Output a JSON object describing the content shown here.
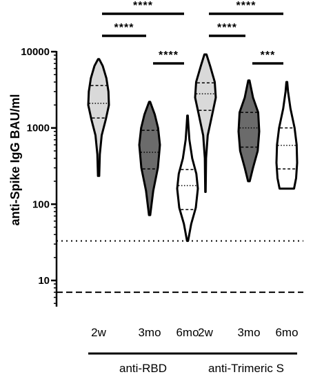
{
  "chart_data": {
    "type": "violin",
    "ylabel": "anti-Spike IgG BAU/ml",
    "yscale": "log",
    "ylim": [
      5,
      10000
    ],
    "y_ticks": [
      10,
      100,
      1000,
      10000
    ],
    "y_tick_labels": [
      "10",
      "100",
      "1000",
      "10000"
    ],
    "categories": [
      "2w",
      "3mo",
      "6mo",
      "2w",
      "3mo",
      "6mo"
    ],
    "groups": [
      {
        "label": "anti-RBD",
        "category_indices": [
          0,
          1,
          2
        ]
      },
      {
        "label": "anti-Trimeric S",
        "category_indices": [
          3,
          4,
          5
        ]
      }
    ],
    "violins": [
      {
        "min": 235,
        "q1": 1350,
        "median": 2100,
        "q3": 3600,
        "max": 8000,
        "fill": "#d9d9d9",
        "profile": [
          [
            235,
            0.06
          ],
          [
            450,
            0.12
          ],
          [
            800,
            0.3
          ],
          [
            1300,
            0.7
          ],
          [
            2000,
            1.0
          ],
          [
            3000,
            0.95
          ],
          [
            4500,
            0.75
          ],
          [
            6500,
            0.4
          ],
          [
            8000,
            0.05
          ]
        ]
      },
      {
        "min": 72,
        "q1": 290,
        "median": 480,
        "q3": 930,
        "max": 2200,
        "fill": "#6b6b6b",
        "profile": [
          [
            72,
            0.06
          ],
          [
            150,
            0.35
          ],
          [
            300,
            0.8
          ],
          [
            600,
            1.0
          ],
          [
            1000,
            0.82
          ],
          [
            1500,
            0.5
          ],
          [
            2200,
            0.05
          ]
        ]
      },
      {
        "min": 33,
        "q1": 85,
        "median": 175,
        "q3": 285,
        "max": 1450,
        "fill": "#ffffff",
        "profile": [
          [
            33,
            0.05
          ],
          [
            55,
            0.35
          ],
          [
            90,
            0.8
          ],
          [
            160,
            1.0
          ],
          [
            250,
            0.85
          ],
          [
            400,
            0.45
          ],
          [
            700,
            0.18
          ],
          [
            1100,
            0.08
          ],
          [
            1450,
            0.03
          ]
        ]
      },
      {
        "min": 145,
        "q1": 1700,
        "median": 2800,
        "q3": 3900,
        "max": 9200,
        "fill": "#d9d9d9",
        "profile": [
          [
            145,
            0.02
          ],
          [
            400,
            0.06
          ],
          [
            800,
            0.22
          ],
          [
            1500,
            0.65
          ],
          [
            2500,
            1.0
          ],
          [
            4000,
            0.9
          ],
          [
            6500,
            0.45
          ],
          [
            9200,
            0.1
          ]
        ]
      },
      {
        "min": 200,
        "q1": 560,
        "median": 1000,
        "q3": 1600,
        "max": 4200,
        "fill": "#6b6b6b",
        "profile": [
          [
            200,
            0.08
          ],
          [
            300,
            0.4
          ],
          [
            500,
            0.85
          ],
          [
            900,
            1.0
          ],
          [
            1600,
            0.9
          ],
          [
            2500,
            0.4
          ],
          [
            4200,
            0.06
          ]
        ]
      },
      {
        "min": 160,
        "q1": 290,
        "median": 590,
        "q3": 1000,
        "max": 4000,
        "fill": "#ffffff",
        "profile": [
          [
            160,
            0.7
          ],
          [
            220,
            0.9
          ],
          [
            350,
            1.0
          ],
          [
            600,
            0.95
          ],
          [
            1000,
            0.75
          ],
          [
            1800,
            0.35
          ],
          [
            3000,
            0.12
          ],
          [
            4000,
            0.04
          ]
        ]
      }
    ],
    "reference_lines": [
      {
        "y": 33,
        "style": "dotted"
      },
      {
        "y": 7,
        "style": "dashed"
      }
    ],
    "significance": [
      {
        "from": 0,
        "to": 2,
        "label": "****",
        "level": 2
      },
      {
        "from": 0,
        "to": 1,
        "label": "****",
        "level": 1
      },
      {
        "from": 1,
        "to": 2,
        "label": "****",
        "level": 0
      },
      {
        "from": 3,
        "to": 5,
        "label": "****",
        "level": 2
      },
      {
        "from": 3,
        "to": 4,
        "label": "****",
        "level": 1
      },
      {
        "from": 4,
        "to": 5,
        "label": "***",
        "level": 0
      }
    ]
  }
}
